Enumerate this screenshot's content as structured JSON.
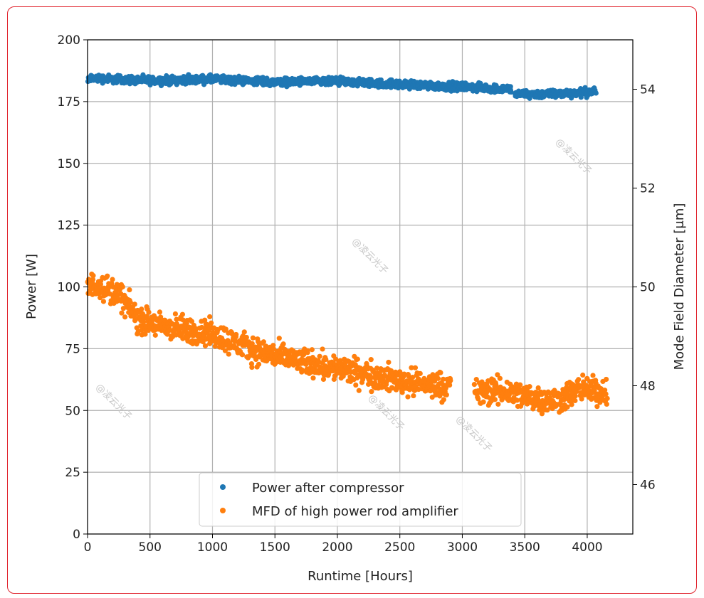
{
  "chart_data": {
    "type": "scatter",
    "title": "",
    "xlabel": "Runtime [Hours]",
    "ylabel": "Power [W]",
    "ylabel_right": "Mode Field Diameter [$\\mu$m]",
    "ylabel_right_display": "Mode Field Diameter [μm]",
    "xlim": [
      0,
      4365
    ],
    "ylim": [
      0,
      200
    ],
    "ylim_right": [
      45,
      55
    ],
    "xticks": [
      "0",
      "500",
      "1000",
      "1500",
      "2000",
      "2500",
      "3000",
      "3500",
      "4000"
    ],
    "yticks": [
      "0",
      "25",
      "50",
      "75",
      "100",
      "125",
      "150",
      "175",
      "200"
    ],
    "yticks_right": [
      "46",
      "48",
      "50",
      "52",
      "54"
    ],
    "grid": true,
    "legend_position": "bottom-center",
    "series": [
      {
        "name": "Power after compressor",
        "axis": "left",
        "color": "#1f77b4",
        "trend": [
          [
            0,
            183
          ],
          [
            20,
            184.5
          ],
          [
            500,
            183.5
          ],
          [
            1000,
            184
          ],
          [
            1500,
            183
          ],
          [
            2000,
            183
          ],
          [
            2500,
            182
          ],
          [
            3000,
            181
          ],
          [
            3390,
            180
          ],
          [
            3420,
            178
          ],
          [
            3700,
            178
          ],
          [
            4070,
            179
          ]
        ],
        "gaps": [
          [
            3392,
            3418
          ]
        ],
        "spread": 1.5
      },
      {
        "name": "MFD of high power rod amplifier",
        "axis": "right",
        "color": "#ff7f0e",
        "trend": [
          [
            0,
            50.0
          ],
          [
            100,
            50.05
          ],
          [
            250,
            49.85
          ],
          [
            400,
            49.35
          ],
          [
            600,
            49.2
          ],
          [
            1000,
            49.05
          ],
          [
            1300,
            48.75
          ],
          [
            1500,
            48.6
          ],
          [
            2000,
            48.35
          ],
          [
            2400,
            48.15
          ],
          [
            2600,
            48.05
          ],
          [
            2900,
            48.0
          ],
          [
            3100,
            47.85
          ],
          [
            3300,
            47.9
          ],
          [
            3500,
            47.8
          ],
          [
            3700,
            47.7
          ],
          [
            3800,
            47.75
          ],
          [
            3950,
            47.95
          ],
          [
            4160,
            47.85
          ]
        ],
        "gaps": [
          [
            2905,
            3095
          ]
        ],
        "spread": 0.25
      }
    ]
  },
  "watermarks": [
    "@凌云光子",
    "@凌云光子",
    "@凌云光子",
    "@凌云光子",
    "@凌云光子"
  ]
}
